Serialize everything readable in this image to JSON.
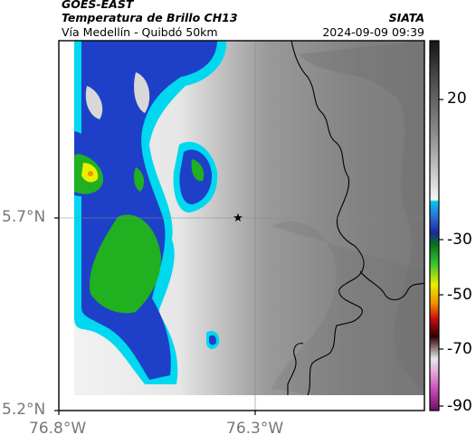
{
  "header": {
    "satellite": "GOES-EAST",
    "product": "Temperatura de Brillo CH13",
    "route": "Vía Medellín - Quibdó 50km",
    "org": "SIATA",
    "datetime": "2024-09-09 09:39"
  },
  "map_axes": {
    "latitude_labels": [
      "5.7°N",
      "5.2°N"
    ],
    "longitude_labels": [
      "76.8°W",
      "76.3°W"
    ],
    "gridlines": true
  },
  "colorbar": {
    "labels": [
      "20",
      "-30",
      "-50",
      "-70",
      "-90"
    ],
    "units_shown": false
  },
  "markers": [
    {
      "name": "route-point-star",
      "symbol": "star"
    }
  ],
  "colors": {
    "cloud_blue": "#1e40c8",
    "cloud_cyan": "#00d8f0",
    "cloud_green": "#20b020",
    "cloud_yellow": "#e8f000",
    "warm_gray": "#8a8a8a",
    "coastline": "#000000"
  }
}
